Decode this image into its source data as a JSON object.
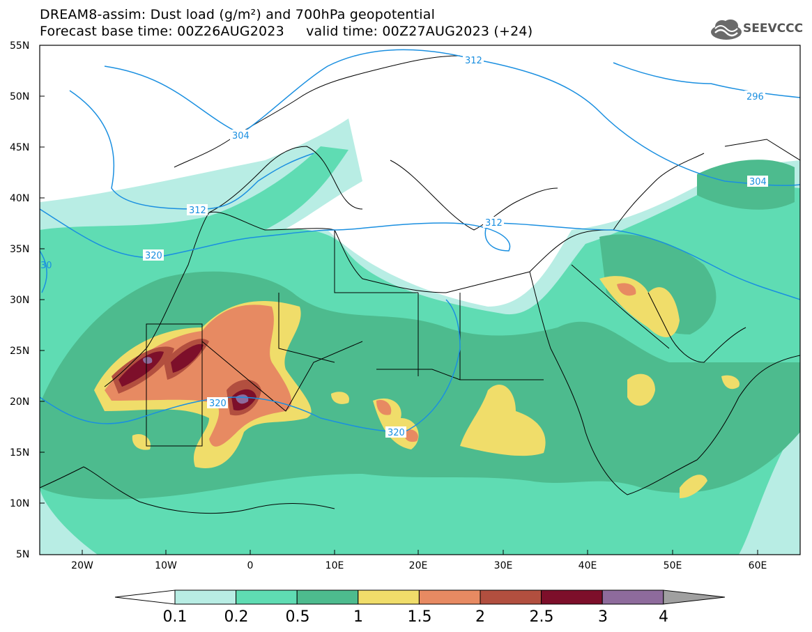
{
  "header": {
    "title_line1": "DREAM8-assim: Dust load (g/m²) and 700hPa geopotential",
    "title_line2": "Forecast base time: 00Z26AUG2023     valid time: 00Z27AUG2023 (+24)",
    "logo_text": "SEEVCCC",
    "logo_icon": "cloud-icon"
  },
  "map": {
    "lat_labels": [
      "55N",
      "50N",
      "45N",
      "40N",
      "35N",
      "30N",
      "25N",
      "20N",
      "15N",
      "10N",
      "5N"
    ],
    "lon_labels": [
      "20W",
      "10W",
      "0",
      "10E",
      "20E",
      "30E",
      "40E",
      "50E",
      "60E"
    ],
    "contour_labels": [
      "312",
      "296",
      "304",
      "304",
      "312",
      "312",
      "320",
      "320",
      "320",
      "30"
    ],
    "colors": {
      "contour": "#1a8fe0",
      "land_border": "#000000"
    }
  },
  "legend": {
    "labels": [
      "0.1",
      "0.2",
      "0.5",
      "1",
      "1.5",
      "2",
      "2.5",
      "3",
      "4"
    ],
    "colors": [
      "#ffffff",
      "#b8ede4",
      "#5fdcb3",
      "#4dbb8e",
      "#f0dd6a",
      "#e78a62",
      "#b24f3f",
      "#7d0f2a",
      "#8e6b9c",
      "#a0a0a0"
    ]
  }
}
